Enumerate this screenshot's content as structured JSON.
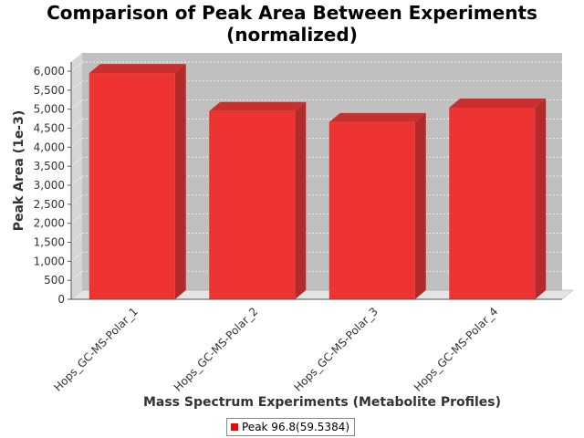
{
  "chart_data": {
    "type": "bar",
    "title": "Comparison of Peak Area Between Experiments (normalized)",
    "title_lines": [
      "Comparison of Peak Area Between Experiments",
      "(normalized)"
    ],
    "xlabel": "Mass Spectrum Experiments (Metabolite Profiles)",
    "ylabel": "Peak Area (1e-3)",
    "categories": [
      "Hops_GC-MS-Polar_1",
      "Hops_GC-MS-Polar_2",
      "Hops_GC-MS-Polar_3",
      "Hops_GC-MS-Polar_4"
    ],
    "series": [
      {
        "name": "Peak 96.8(59.5384)",
        "values": [
          5950,
          4950,
          4660,
          5040
        ],
        "color": "#ff0000"
      }
    ],
    "ylim": [
      0,
      6000
    ],
    "yticks": [
      0,
      500,
      1000,
      1500,
      2000,
      2500,
      3000,
      3500,
      4000,
      4500,
      5000,
      5500,
      6000
    ],
    "ytick_labels": [
      "0",
      "500",
      "1,000",
      "1,500",
      "2,000",
      "2,500",
      "3,000",
      "3,500",
      "4,000",
      "4,500",
      "5,000",
      "5,500",
      "6,000"
    ],
    "grid": true,
    "legend": "bottom",
    "plot_background": "#c0c0c0",
    "bar_color": "#ee3333"
  }
}
